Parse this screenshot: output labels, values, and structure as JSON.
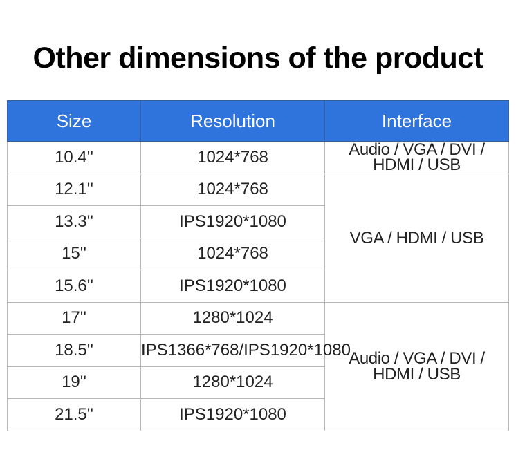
{
  "title": "Other dimensions of the product",
  "table": {
    "headers": [
      "Size",
      "Resolution",
      "Interface"
    ],
    "rows": [
      {
        "size": "10.4''",
        "resolution": "1024*768"
      },
      {
        "size": "12.1''",
        "resolution": "1024*768"
      },
      {
        "size": "13.3''",
        "resolution": "IPS1920*1080"
      },
      {
        "size": "15''",
        "resolution": "1024*768"
      },
      {
        "size": "15.6''",
        "resolution": "IPS1920*1080"
      },
      {
        "size": "17''",
        "resolution": "1280*1024"
      },
      {
        "size": "18.5''",
        "resolution": "IPS1366*768/IPS1920*1080"
      },
      {
        "size": "19''",
        "resolution": "1280*1024"
      },
      {
        "size": "21.5''",
        "resolution": "IPS1920*1080"
      }
    ],
    "interfaces": {
      "group1": {
        "line1": "Audio / VGA / DVI /",
        "line2": "HDMI / USB"
      },
      "group2": "VGA / HDMI / USB",
      "group3": {
        "line1": "Audio / VGA / DVI /",
        "line2": "HDMI / USB"
      }
    }
  }
}
